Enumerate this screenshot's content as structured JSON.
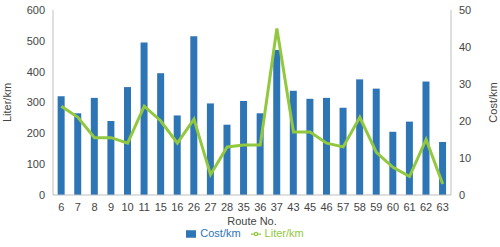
{
  "chart_data": {
    "type": "bar",
    "categories": [
      "6",
      "7",
      "8",
      "9",
      "10",
      "11",
      "15",
      "16",
      "26",
      "27",
      "28",
      "35",
      "36",
      "37",
      "43",
      "45",
      "46",
      "57",
      "58",
      "59",
      "60",
      "61",
      "62",
      "63"
    ],
    "x_label": "Route No.",
    "y_label": "Liter/km",
    "y2_label": "Cost/km",
    "ylim": [
      0,
      600
    ],
    "yticks": [
      0,
      100,
      200,
      300,
      400,
      500,
      600
    ],
    "y2lim": [
      0,
      50
    ],
    "y2ticks": [
      0,
      10,
      20,
      30,
      40,
      50
    ],
    "legend": "bottom",
    "series": [
      {
        "name": "Cost/km",
        "type": "bar",
        "color": "#2e75b6",
        "values": [
          320,
          265,
          315,
          240,
          350,
          495,
          395,
          258,
          515,
          297,
          228,
          305,
          265,
          470,
          338,
          312,
          315,
          283,
          375,
          345,
          205,
          238,
          368,
          172
        ]
      },
      {
        "name": "Liter/km",
        "type": "line",
        "color": "#92c83e",
        "axis": "y2",
        "values": [
          24,
          21,
          15.5,
          15.5,
          14,
          24,
          20,
          14,
          20.5,
          5.5,
          13,
          13.5,
          13.5,
          45,
          17,
          17,
          14,
          13,
          21,
          11.5,
          7.5,
          5,
          15,
          3
        ]
      }
    ]
  }
}
